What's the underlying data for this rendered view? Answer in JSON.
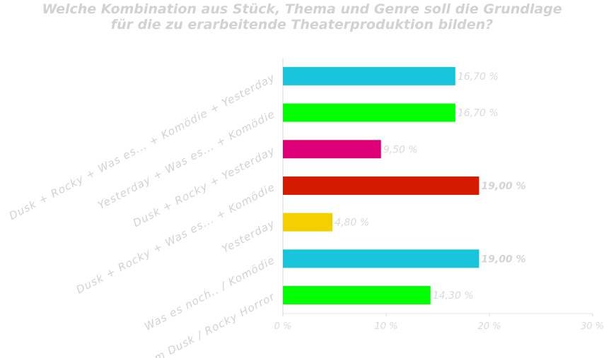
{
  "chart_data": {
    "type": "bar",
    "orientation": "horizontal",
    "title_line1": "Welche Kombination aus Stück, Thema und Genre soll die Grundlage",
    "title_line2": "für die zu erarbeitende Theaterproduktion bilden?",
    "categories": [
      "Dusk + Rocky + Was es... + Komödie + Yesterday",
      "Yesterday + Was es... + Komödie",
      "Dusk + Rocky + Yesterday",
      "Dusk + Rocky + Was es... + Komödie",
      "Yesterday",
      "Was es noch.. / Komödie",
      "From Dusk / Rocky Horror"
    ],
    "values": [
      16.7,
      16.7,
      9.5,
      19.0,
      4.8,
      19.0,
      14.3
    ],
    "value_labels": [
      "16,70 %",
      "16,70 %",
      "9,50 %",
      "19,00 %",
      "4,80 %",
      "19,00 %",
      "14,30 %"
    ],
    "colors": [
      "#17c4da",
      "#00ff00",
      "#dd0077",
      "#d41a00",
      "#f5d000",
      "#17c4da",
      "#00ff00"
    ],
    "label_colors": [
      "#d9d9d9",
      "#d9d9d9",
      "#d9d9d9",
      "#ffffff",
      "#d9d9d9",
      "#ffffff",
      "#d9d9d9"
    ],
    "xlim": [
      0,
      30
    ],
    "xticks": [
      0,
      10,
      20,
      30
    ],
    "xtick_labels": [
      "0 %",
      "10 %",
      "20 %",
      "30 %"
    ],
    "grid": false
  }
}
